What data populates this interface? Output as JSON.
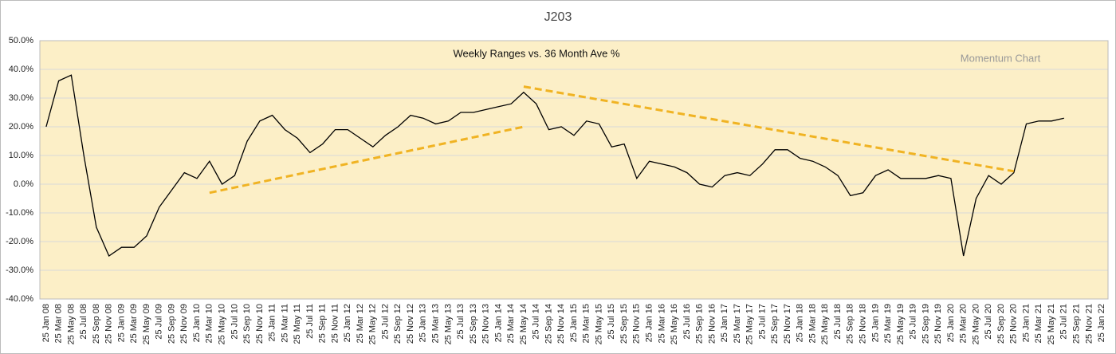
{
  "chart_data": {
    "type": "line",
    "title": "J203",
    "subtitle": "Weekly Ranges vs. 36 Month Ave %",
    "annotation": "Momentum Chart",
    "categories": [
      "25 Jan 08",
      "25 Mar 08",
      "25 May 08",
      "25 Jul 08",
      "25 Sep 08",
      "25 Nov 08",
      "25 Jan 09",
      "25 Mar 09",
      "25 May 09",
      "25 Jul 09",
      "25 Sep 09",
      "25 Nov 09",
      "25 Jan 10",
      "25 Mar 10",
      "25 May 10",
      "25 Jul 10",
      "25 Sep 10",
      "25 Nov 10",
      "25 Jan 11",
      "25 Mar 11",
      "25 May 11",
      "25 Jul 11",
      "25 Sep 11",
      "25 Nov 11",
      "25 Jan 12",
      "25 Mar 12",
      "25 May 12",
      "25 Jul 12",
      "25 Sep 12",
      "25 Nov 12",
      "25 Jan 13",
      "25 Mar 13",
      "25 May 13",
      "25 Jul 13",
      "25 Sep 13",
      "25 Nov 13",
      "25 Jan 14",
      "25 Mar 14",
      "25 May 14",
      "25 Jul 14",
      "25 Sep 14",
      "25 Nov 14",
      "25 Jan 15",
      "25 Mar 15",
      "25 May 15",
      "25 Jul 15",
      "25 Sep 15",
      "25 Nov 15",
      "25 Jan 16",
      "25 Mar 16",
      "25 May 16",
      "25 Jul 16",
      "25 Sep 16",
      "25 Nov 16",
      "25 Jan 17",
      "25 Mar 17",
      "25 May 17",
      "25 Jul 17",
      "25 Sep 17",
      "25 Nov 17",
      "25 Jan 18",
      "25 Mar 18",
      "25 May 18",
      "25 Jul 18",
      "25 Sep 18",
      "25 Nov 18",
      "25 Jan 19",
      "25 Mar 19",
      "25 May 19",
      "25 Jul 19",
      "25 Sep 19",
      "25 Nov 19",
      "25 Jan 20",
      "25 Mar 20",
      "25 May 20",
      "25 Jul 20",
      "25 Sep 20",
      "25 Nov 20",
      "25 Jan 21",
      "25 Mar 21",
      "25 May 21",
      "25 Jul 21",
      "25 Sep 21",
      "25 Nov 21",
      "25 Jan 22"
    ],
    "values": [
      20,
      36,
      38,
      10,
      -15,
      -25,
      -22,
      -22,
      -18,
      -8,
      -2,
      4,
      2,
      8,
      0,
      3,
      15,
      22,
      24,
      19,
      16,
      11,
      14,
      19,
      19,
      16,
      13,
      17,
      20,
      24,
      23,
      21,
      22,
      25,
      25,
      26,
      27,
      28,
      32,
      28,
      19,
      20,
      17,
      22,
      21,
      13,
      14,
      2,
      8,
      7,
      6,
      4,
      0,
      -1,
      3,
      4,
      3,
      7,
      12,
      12,
      9,
      8,
      6,
      3,
      -4,
      -3,
      3,
      5,
      2,
      2,
      2,
      3,
      2,
      -25,
      -5,
      3,
      0,
      4,
      21,
      22,
      22,
      23,
      null,
      null,
      null
    ],
    "color": "#000000",
    "trendlines": [
      {
        "x": [
          "25 Mar 10",
          "25 May 14"
        ],
        "y": [
          -3,
          20
        ],
        "color": "#f0b323"
      },
      {
        "x": [
          "25 May 14",
          "25 Nov 20"
        ],
        "y": [
          34,
          4.5
        ],
        "color": "#f0b323"
      }
    ],
    "ylim": [
      -40,
      50
    ],
    "yticks": [
      {
        "value": -40,
        "label": "-40.0%"
      },
      {
        "value": -30,
        "label": "-30.0%"
      },
      {
        "value": -20,
        "label": "-20.0%"
      },
      {
        "value": -10,
        "label": "-10.0%"
      },
      {
        "value": 0,
        "label": "0.0%"
      },
      {
        "value": 10,
        "label": "10.0%"
      },
      {
        "value": 20,
        "label": "20.0%"
      },
      {
        "value": 30,
        "label": "30.0%"
      },
      {
        "value": 40,
        "label": "40.0%"
      },
      {
        "value": 50,
        "label": "50.0%"
      }
    ],
    "grid": true,
    "plot_background": "#fcefc7"
  }
}
